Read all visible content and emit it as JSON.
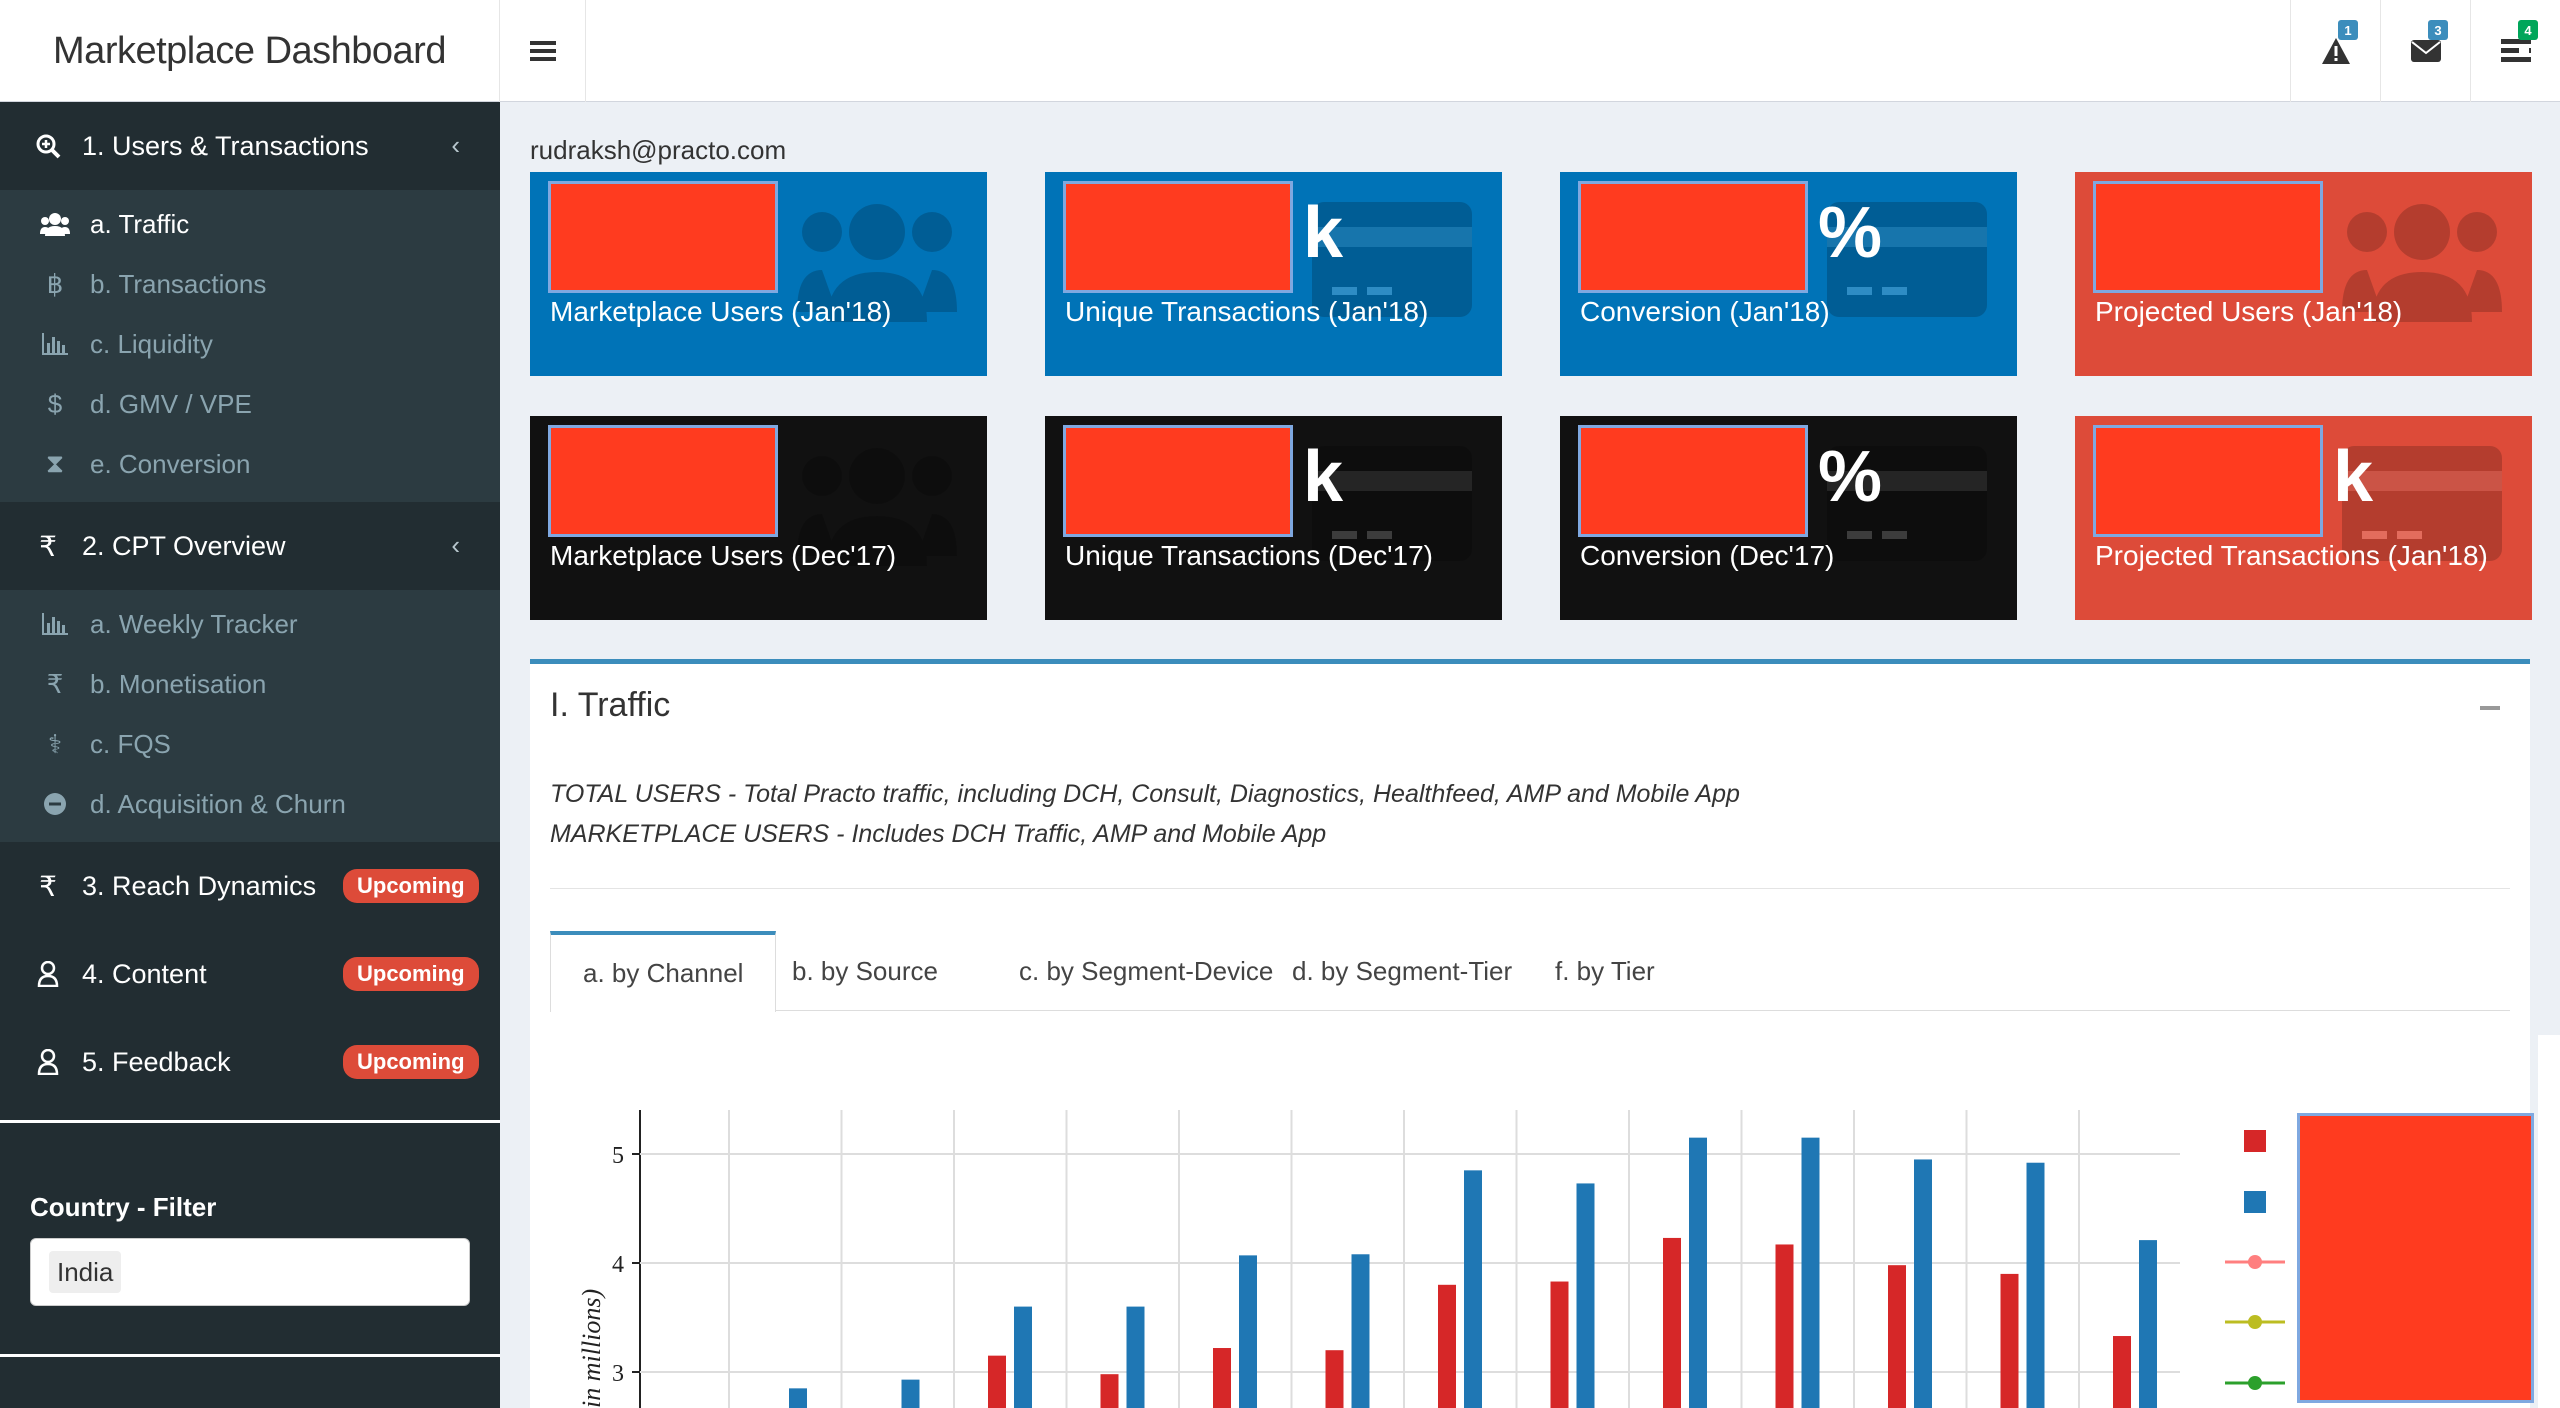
{
  "header": {
    "title": "Marketplace Dashboard",
    "alerts": [
      {
        "icon": "warning-icon",
        "count": "1",
        "color": "#3c8dbc"
      },
      {
        "icon": "envelope-icon",
        "count": "3",
        "color": "#3c8dbc"
      },
      {
        "icon": "tasks-icon",
        "count": "4",
        "color": "#00a65a"
      }
    ]
  },
  "sidebar": {
    "section1": {
      "label": "1. Users & Transactions",
      "items": [
        {
          "label": "a. Traffic",
          "icon": "users-icon"
        },
        {
          "label": "b. Transactions",
          "icon": "bitcoin-icon"
        },
        {
          "label": "c. Liquidity",
          "icon": "bar-chart-icon"
        },
        {
          "label": "d. GMV / VPE",
          "icon": "dollar-icon"
        },
        {
          "label": "e. Conversion",
          "icon": "hourglass-icon"
        }
      ]
    },
    "section2": {
      "label": "2. CPT Overview",
      "items": [
        {
          "label": "a. Weekly Tracker",
          "icon": "bar-chart-icon"
        },
        {
          "label": "b. Monetisation",
          "icon": "rupee-icon"
        },
        {
          "label": "c. FQS",
          "icon": "stethoscope-icon"
        },
        {
          "label": "d. Acquisition & Churn",
          "icon": "minus-circle-icon"
        }
      ]
    },
    "section3": {
      "label": "3. Reach Dynamics",
      "badge": "Upcoming"
    },
    "section4": {
      "label": "4. Content",
      "badge": "Upcoming"
    },
    "section5": {
      "label": "5. Feedback",
      "badge": "Upcoming"
    },
    "filter": {
      "label": "Country - Filter",
      "value": "India"
    }
  },
  "main": {
    "user_email": "rudraksh@practo.com",
    "kpis": [
      {
        "label": "Marketplace Users (Jan'18)",
        "suffix": "",
        "theme": "blue"
      },
      {
        "label": "Unique Transactions (Jan'18)",
        "suffix": "k",
        "theme": "blue"
      },
      {
        "label": "Conversion (Jan'18)",
        "suffix": "%",
        "theme": "blue"
      },
      {
        "label": "Projected Users (Jan'18)",
        "suffix": "",
        "theme": "red"
      },
      {
        "label": "Marketplace Users (Dec'17)",
        "suffix": "",
        "theme": "black"
      },
      {
        "label": "Unique Transactions (Dec'17)",
        "suffix": "k",
        "theme": "black"
      },
      {
        "label": "Conversion (Dec'17)",
        "suffix": "%",
        "theme": "black"
      },
      {
        "label": "Projected Transactions (Jan'18)",
        "suffix": "k",
        "theme": "red"
      }
    ],
    "traffic": {
      "title": "I. Traffic",
      "desc1": "TOTAL USERS - Total Practo traffic, including DCH, Consult, Diagnostics, Healthfeed, AMP and Mobile App",
      "desc2": "MARKETPLACE USERS - Includes DCH Traffic, AMP and Mobile App",
      "tabs": [
        "a. by Channel",
        "b. by Source",
        "c. by Segment-Device",
        "d. by Segment-Tier",
        "f. by Tier"
      ]
    }
  },
  "chart_data": {
    "type": "bar",
    "ylabel": "in millions)",
    "ylim": [
      2.7,
      5.4
    ],
    "yticks": [
      3,
      4,
      5
    ],
    "series": [
      {
        "color": "#d62728",
        "values": [
          null,
          null,
          3.15,
          2.98,
          3.22,
          3.2,
          3.8,
          3.83,
          4.23,
          4.17,
          3.98,
          3.9,
          3.33
        ]
      },
      {
        "color": "#1f77b4",
        "values": [
          2.85,
          2.93,
          3.6,
          3.6,
          4.07,
          4.08,
          4.85,
          4.73,
          5.15,
          5.15,
          4.95,
          4.92,
          4.21
        ]
      }
    ],
    "legend_markers": [
      {
        "type": "square",
        "color": "#d62728"
      },
      {
        "type": "square",
        "color": "#1f77b4"
      },
      {
        "type": "line",
        "color": "#ff7f7f"
      },
      {
        "type": "line",
        "color": "#bcbd22"
      },
      {
        "type": "line",
        "color": "#2ca02c"
      }
    ]
  }
}
